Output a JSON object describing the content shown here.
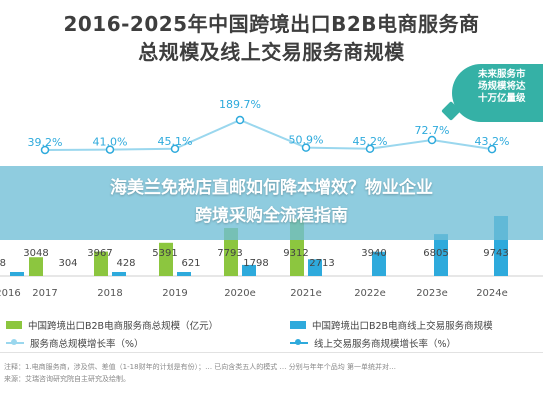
{
  "titles": {
    "line1": "2016-2025年中国跨境出口B2B电商服务商",
    "line2": "总规模及线上交易服务商规模"
  },
  "callout": {
    "lines": [
      "未来服务市",
      "场规模将达",
      "十万亿量级"
    ]
  },
  "banner": {
    "line1": "海美兰免税店直邮如何降本增效？物业企业",
    "line2": "跨境采购全流程指南"
  },
  "legend": {
    "items": [
      "中国跨境出口B2B电商服务商总规模（亿元）",
      "中国跨境出口B2B电商线上交易服务商规模",
      "服务商总规模增长率（%）",
      "线上交易服务商规模增长率（%）"
    ]
  },
  "notes": {
    "line1": "注释：1.电商服务商，涉及供、差值（1-18财年的计划是有份）；… 已向含类五人的模式 … 分别与年年个品均 第一单统并对…",
    "line2": "来源：艾瑞咨询研究院自主研究及绘制。"
  },
  "colors": {
    "total_bar": "#8cc63f",
    "online_bar": "#2eaadc",
    "total_growth_line": "#9ad7ee",
    "online_growth_line": "#2eaadc"
  },
  "chart_data": {
    "type": "bar",
    "categories": [
      "2016",
      "2017",
      "2018",
      "2019",
      "2020e",
      "2021e",
      "2022e",
      "2023e",
      "2024e"
    ],
    "series": [
      {
        "name": "中国跨境出口B2B电商服务商总规模（亿元）",
        "type": "bar",
        "values": [
          null,
          3048,
          3967,
          5391,
          7793,
          9312,
          null,
          null,
          null
        ]
      },
      {
        "name": "中国跨境出口B2B电商线上交易服务商规模",
        "type": "bar",
        "values": [
          304,
          null,
          428,
          621,
          1798,
          2713,
          3940,
          6805,
          9743
        ]
      },
      {
        "name": "服务商总规模增长率（%）",
        "type": "line",
        "values": [
          null,
          39.2,
          41.0,
          45.1,
          null,
          50.9,
          45.2,
          72.7,
          43.2
        ]
      },
      {
        "name": "线上交易服务商规模增长率（%）",
        "type": "line",
        "values": [
          null,
          null,
          null,
          null,
          189.7,
          null,
          null,
          null,
          null
        ]
      }
    ],
    "bar_labels": [
      {
        "category": "2016",
        "labels": [
          "8",
          "3048",
          "304"
        ]
      },
      {
        "category": "2018",
        "labels": [
          "3967",
          "428"
        ]
      },
      {
        "category": "2019",
        "labels": [
          "5391",
          "621"
        ]
      },
      {
        "category": "2020e",
        "labels": [
          "7793",
          "1798"
        ]
      },
      {
        "category": "2021e",
        "labels": [
          "9312",
          "2713"
        ]
      },
      {
        "category": "2022e",
        "labels": [
          "3940"
        ]
      },
      {
        "category": "2023e",
        "labels": [
          "6805"
        ]
      },
      {
        "category": "2024e",
        "labels": [
          "9743"
        ]
      }
    ],
    "growth_labels": [
      "39.2%",
      "41.0%",
      "45.1%",
      "189.7%",
      "50.9%",
      "45.2%",
      "72.7%",
      "43.2%"
    ],
    "grid": false,
    "legend_position": "bottom"
  }
}
